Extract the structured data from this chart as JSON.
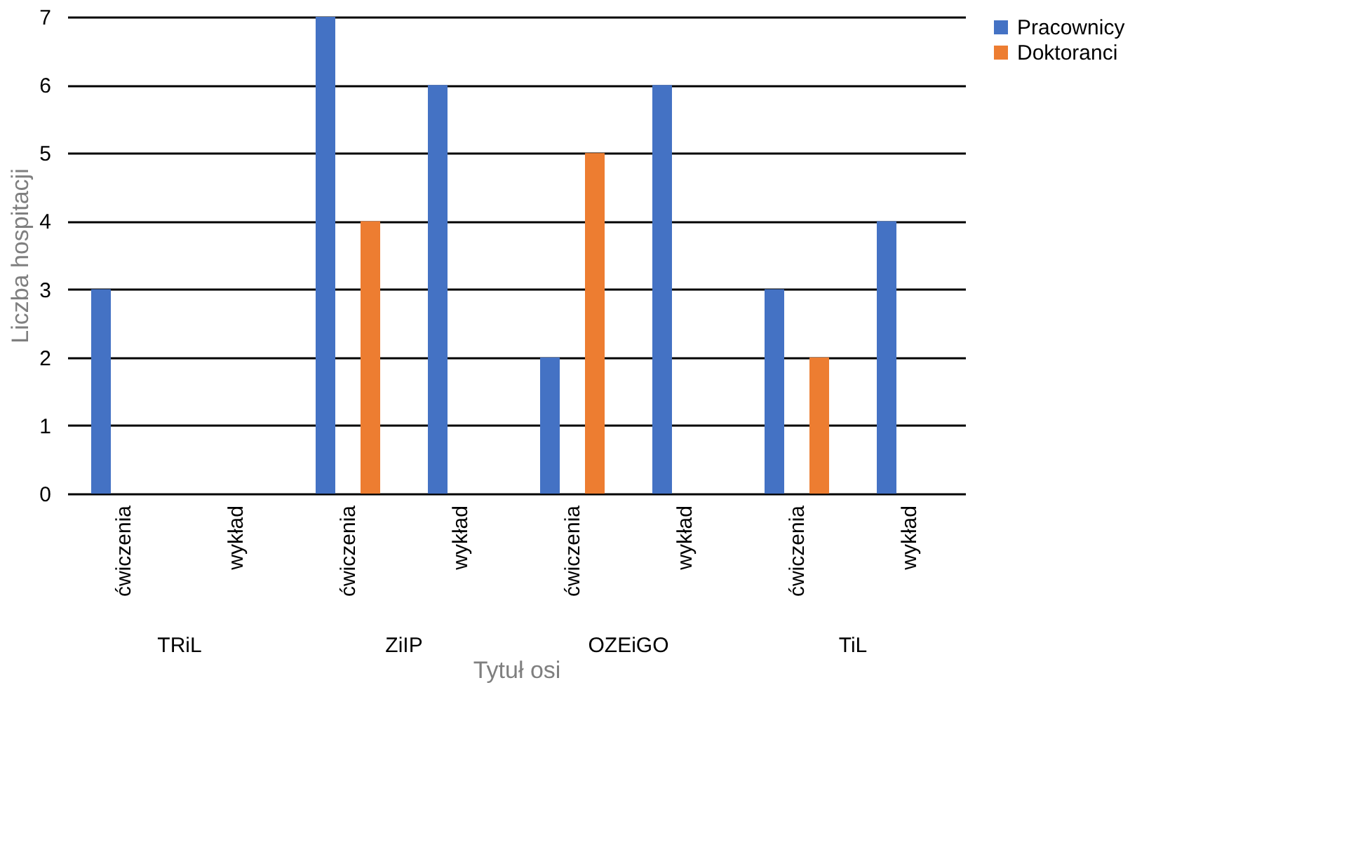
{
  "chart_data": {
    "type": "bar",
    "xlabel": "Tytuł osi",
    "ylabel": "Liczba hospitacji",
    "categories": [
      "ćwiczenia",
      "wykład",
      "ćwiczenia",
      "wykład",
      "ćwiczenia",
      "wykład",
      "ćwiczenia",
      "wykład"
    ],
    "annotations": [
      "TRiL",
      "ZiIP",
      "OZEiGO",
      "TiL"
    ],
    "series": [
      {
        "name": "Pracownicy",
        "color": "#4472c4",
        "values": [
          3,
          null,
          7,
          6,
          2,
          6,
          3,
          4
        ]
      },
      {
        "name": "Doktoranci",
        "color": "#ed7d31",
        "values": [
          null,
          null,
          4,
          null,
          5,
          null,
          2,
          null
        ]
      }
    ],
    "ylim": [
      0,
      7
    ],
    "yticks": [
      0,
      1,
      2,
      3,
      4,
      5,
      6,
      7
    ],
    "grid": "y",
    "legend": "right"
  }
}
